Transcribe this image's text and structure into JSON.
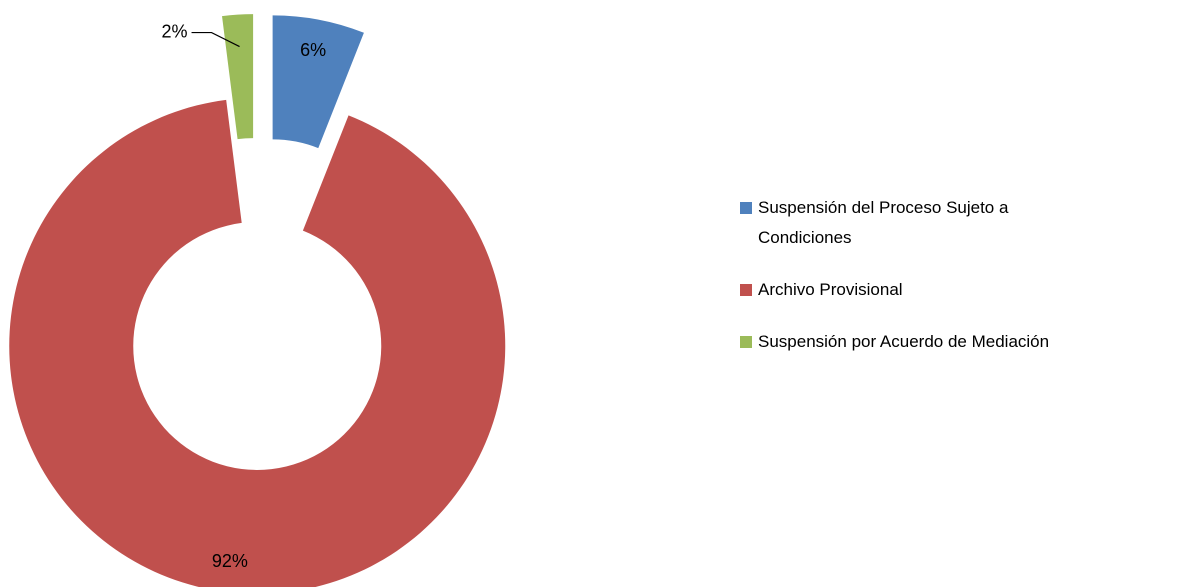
{
  "chart_data": {
    "type": "donut",
    "categories": [
      "Suspensión del Proceso Sujeto a Condiciones",
      "Archivo Provisional",
      "Suspensión por Acuerdo de Mediación"
    ],
    "values": [
      6,
      92,
      2
    ],
    "value_labels": [
      "6%",
      "92%",
      "2%"
    ],
    "colors": [
      "#4f81bd",
      "#c0504d",
      "#9bbb59"
    ],
    "legend": "right"
  }
}
